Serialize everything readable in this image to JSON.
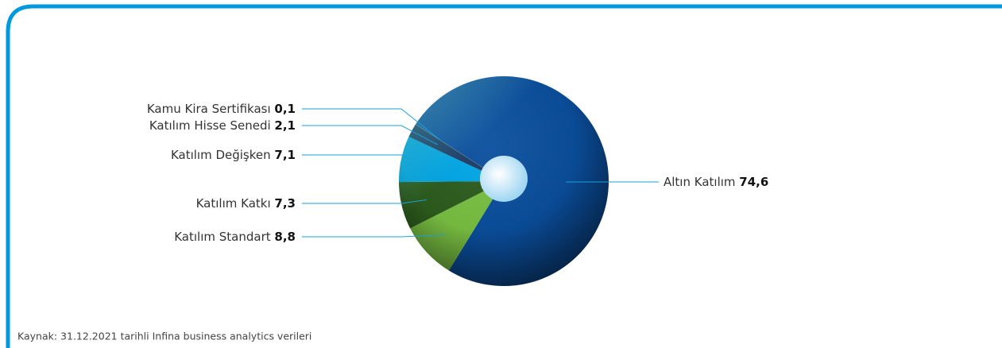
{
  "chart_data": {
    "type": "pie",
    "categories": [
      "Altın Katılım",
      "Katılım Standart",
      "Katılım Katkı",
      "Katılım Değişken",
      "Katılım Hisse Senedi",
      "Kamu Kira Sertifikası"
    ],
    "values": [
      74.6,
      8.8,
      7.3,
      7.1,
      2.1,
      0.1
    ],
    "value_labels": [
      "74,6",
      "8,8",
      "7,3",
      "7,1",
      "2,1",
      "0,1"
    ],
    "colors": [
      "#0b4f9e",
      "#7ac143",
      "#2d5d1d",
      "#00a6e6",
      "#1b3c66",
      "#2f6c8f"
    ],
    "source": "Kaynak: 31.12.2021 tarihli Infina business analytics verileri"
  }
}
